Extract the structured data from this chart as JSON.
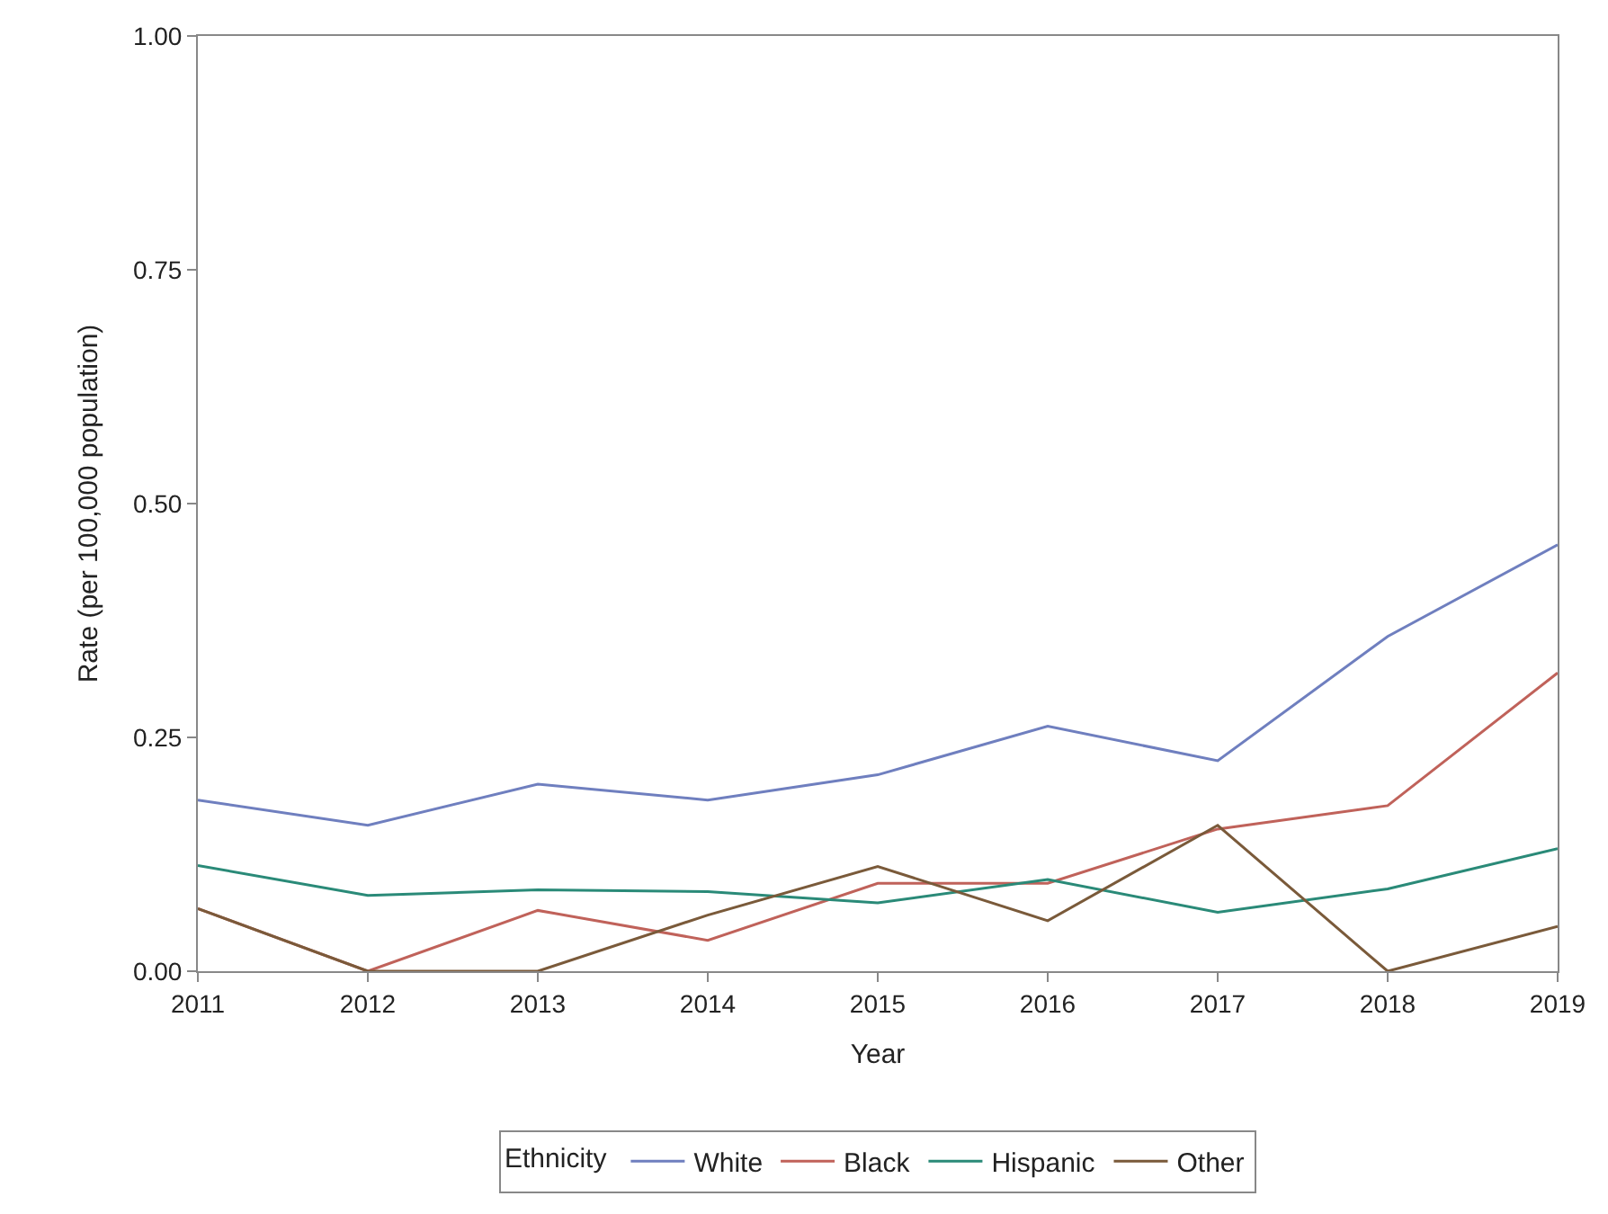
{
  "chart_data": {
    "type": "line",
    "xlabel": "Year",
    "ylabel": "Rate (per 100,000 population)",
    "legend_title": "Ethnicity",
    "x": [
      2011,
      2012,
      2013,
      2014,
      2015,
      2016,
      2017,
      2018,
      2019
    ],
    "series": [
      {
        "name": "White",
        "color": "#6f7fbf",
        "values": [
          0.183,
          0.156,
          0.2,
          0.183,
          0.21,
          0.262,
          0.225,
          0.358,
          0.456
        ]
      },
      {
        "name": "Black",
        "color": "#c0625a",
        "values": [
          0.067,
          0,
          0.065,
          0.033,
          0.094,
          0.094,
          0.152,
          0.177,
          0.319
        ]
      },
      {
        "name": "Hispanic",
        "color": "#2a8a78",
        "values": [
          0.113,
          0.081,
          0.087,
          0.085,
          0.073,
          0.098,
          0.063,
          0.088,
          0.131
        ]
      },
      {
        "name": "Other",
        "color": "#7a5a3a",
        "values": [
          0.067,
          0,
          0,
          0.06,
          0.112,
          0.054,
          0.156,
          0,
          0.048
        ]
      }
    ],
    "xlim": [
      2011,
      2019
    ],
    "xticks": [
      2011,
      2012,
      2013,
      2014,
      2015,
      2016,
      2017,
      2018,
      2019
    ],
    "ylim": [
      0,
      1
    ],
    "yticks": [
      {
        "value": 0,
        "label": "0.00"
      },
      {
        "value": 0.25,
        "label": "0.25"
      },
      {
        "value": 0.5,
        "label": "0.50"
      },
      {
        "value": 0.75,
        "label": "0.75"
      },
      {
        "value": 1,
        "label": "1.00"
      }
    ],
    "legend": "bottom",
    "marker": "none",
    "line_style": "solid"
  }
}
